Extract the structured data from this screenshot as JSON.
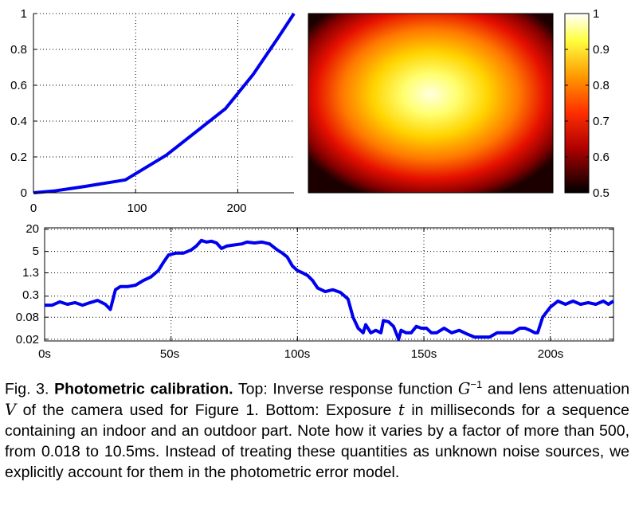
{
  "chart_data": [
    {
      "type": "line",
      "title": "Inverse response function G^-1",
      "x": [
        0,
        20,
        50,
        90,
        130,
        188,
        215,
        240,
        255
      ],
      "y": [
        0,
        0.01,
        0.035,
        0.072,
        0.21,
        0.47,
        0.66,
        0.87,
        1.0
      ],
      "xlim": [
        0,
        255
      ],
      "ylim": [
        0,
        1
      ],
      "xticks": [
        "0",
        "100",
        "200"
      ],
      "yticks": [
        "0",
        "0.2",
        "0.4",
        "0.6",
        "0.8",
        "1"
      ],
      "color": "#0000ee",
      "grid": true
    },
    {
      "type": "heatmap",
      "title": "Lens attenuation V",
      "colormap": "hot",
      "vmin": 0.5,
      "vmax": 1.0,
      "colorbar_ticks": [
        "0.5",
        "0.6",
        "0.7",
        "0.8",
        "0.9",
        "1"
      ]
    },
    {
      "type": "line",
      "title": "Exposure t in milliseconds",
      "yscale": "log",
      "xlim": [
        0,
        225
      ],
      "ylim": [
        0.018,
        22
      ],
      "xticks": [
        "0s",
        "50s",
        "100s",
        "150s",
        "200s"
      ],
      "ytick_values": [
        0.02,
        0.08,
        0.3,
        1.3,
        5,
        20
      ],
      "yticks": [
        "0.02",
        "0.08",
        "0.3",
        "1.3",
        "5",
        "20"
      ],
      "color": "#0000ee",
      "grid": true,
      "x": [
        0,
        3,
        6,
        9,
        12,
        15,
        18,
        21,
        24,
        26,
        28,
        30,
        33,
        36,
        39,
        42,
        45,
        47,
        49,
        52,
        55,
        58,
        60,
        62,
        64,
        66,
        68,
        70,
        72,
        75,
        78,
        80,
        83,
        86,
        89,
        92,
        94,
        96,
        98,
        100,
        102,
        104,
        106,
        108,
        111,
        114,
        117,
        120,
        122,
        124,
        126,
        127,
        129,
        131,
        133,
        134,
        136,
        138,
        140,
        141,
        143,
        145,
        147,
        149,
        151,
        153,
        155,
        158,
        161,
        164,
        167,
        170,
        173,
        176,
        179,
        182,
        185,
        188,
        190,
        192,
        194,
        195,
        197,
        200,
        203,
        206,
        209,
        212,
        215,
        218,
        221,
        223,
        225
      ],
      "y": [
        0.17,
        0.17,
        0.21,
        0.18,
        0.2,
        0.17,
        0.2,
        0.23,
        0.18,
        0.13,
        0.45,
        0.55,
        0.55,
        0.6,
        0.8,
        1.0,
        1.5,
        2.5,
        4.0,
        4.5,
        4.5,
        5.5,
        7.0,
        10.0,
        9.0,
        9.5,
        8.5,
        6.0,
        7.0,
        7.5,
        8.0,
        9.0,
        8.5,
        9.0,
        8.0,
        5.5,
        4.5,
        3.5,
        2.0,
        1.5,
        1.3,
        1.1,
        0.8,
        0.5,
        0.4,
        0.45,
        0.38,
        0.25,
        0.08,
        0.04,
        0.03,
        0.05,
        0.03,
        0.035,
        0.03,
        0.065,
        0.06,
        0.045,
        0.02,
        0.035,
        0.03,
        0.03,
        0.045,
        0.04,
        0.04,
        0.03,
        0.03,
        0.04,
        0.03,
        0.035,
        0.028,
        0.023,
        0.023,
        0.023,
        0.03,
        0.03,
        0.03,
        0.04,
        0.04,
        0.035,
        0.03,
        0.03,
        0.08,
        0.15,
        0.22,
        0.18,
        0.22,
        0.18,
        0.2,
        0.18,
        0.22,
        0.18,
        0.22
      ]
    }
  ],
  "caption": {
    "label": "Fig. 3.",
    "title": "Photometric calibration.",
    "t1": "Top: Inverse response function",
    "G": "G",
    "Gsup": "−1",
    "t2": "and lens attenuation",
    "V": "V",
    "t3": "of the camera used for Figure 1. Bottom: Exposure",
    "t": "t",
    "t4": "in milliseconds for a sequence containing an indoor and an outdoor part. Note how it varies by a factor of more than 500, from 0.018 to 10.5ms. Instead of treating these quantities as unknown noise sources, we explicitly account for them in the photometric error model."
  }
}
